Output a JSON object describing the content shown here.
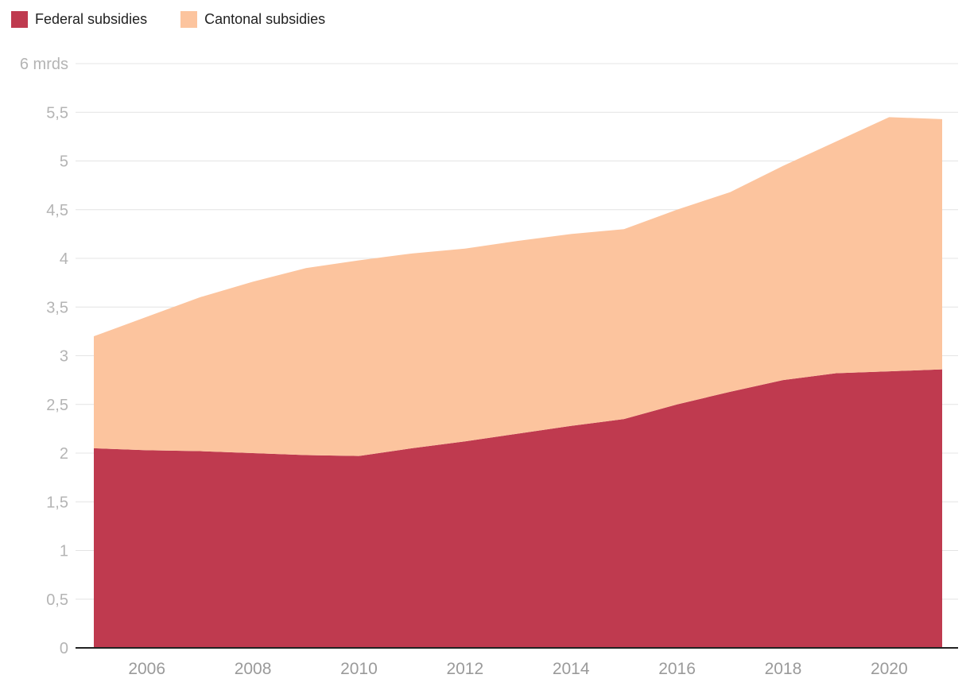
{
  "legend": {
    "items": [
      {
        "label": "Federal subsidies",
        "color": "#bf3a4f"
      },
      {
        "label": "Cantonal subsidies",
        "color": "#fcc49e"
      }
    ]
  },
  "chart_data": {
    "type": "area",
    "stacked": true,
    "title": "",
    "xlabel": "",
    "ylabel": "",
    "unit_label": "mrds",
    "grid": true,
    "legend_position": "top-left",
    "ylim": [
      0,
      6
    ],
    "ytick_step": 0.5,
    "ytick_labels": [
      "0",
      "0,5",
      "1",
      "1,5",
      "2",
      "2,5",
      "3",
      "3,5",
      "4",
      "4,5",
      "5",
      "5,5",
      "6 mrds"
    ],
    "xtick_labels": [
      "2006",
      "2008",
      "2010",
      "2012",
      "2014",
      "2016",
      "2018",
      "2020"
    ],
    "x": [
      2005,
      2006,
      2007,
      2008,
      2009,
      2010,
      2011,
      2012,
      2013,
      2014,
      2015,
      2016,
      2017,
      2018,
      2019,
      2020,
      2021
    ],
    "series": [
      {
        "name": "Federal subsidies",
        "color": "#bf3a4f",
        "values": [
          2.05,
          2.03,
          2.02,
          2.0,
          1.98,
          1.97,
          2.05,
          2.12,
          2.2,
          2.28,
          2.35,
          2.5,
          2.63,
          2.75,
          2.82,
          2.84,
          2.86
        ]
      },
      {
        "name": "Cantonal subsidies",
        "color": "#fcc49e",
        "values": [
          1.15,
          1.37,
          1.58,
          1.76,
          1.92,
          2.01,
          2.0,
          1.98,
          1.98,
          1.97,
          1.95,
          2.0,
          2.05,
          2.2,
          2.38,
          2.61,
          2.57
        ]
      }
    ],
    "colors": {
      "gridline": "#e4e4e4",
      "axis_line": "#222222",
      "y_tick_label": "#b4b4b4",
      "x_tick_label": "#9a9a9a"
    }
  }
}
